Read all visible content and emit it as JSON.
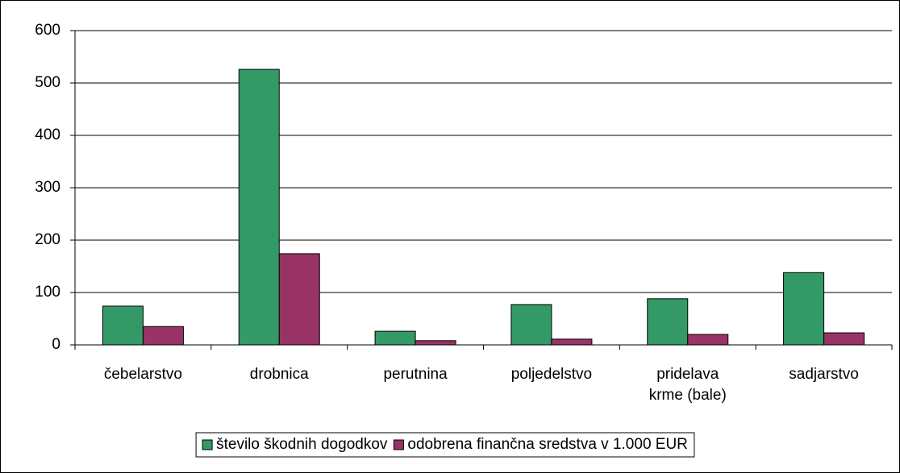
{
  "chart_data": {
    "type": "bar",
    "categories": [
      "čebelarstvo",
      "drobnica",
      "perutnina",
      "poljedelstvo",
      "pridelava krme (bale)",
      "sadjarstvo"
    ],
    "series": [
      {
        "name": "število škodnih dogodkov",
        "color": "#339966",
        "values": [
          74,
          526,
          26,
          77,
          88,
          138
        ]
      },
      {
        "name": "odobrena finančna sredstva v 1.000 EUR",
        "color": "#993366",
        "values": [
          35,
          174,
          8,
          11,
          20,
          23
        ]
      }
    ],
    "ylim": [
      0,
      600
    ],
    "yticks": [
      0,
      100,
      200,
      300,
      400,
      500,
      600
    ],
    "grid": true,
    "legend": "bottom"
  }
}
